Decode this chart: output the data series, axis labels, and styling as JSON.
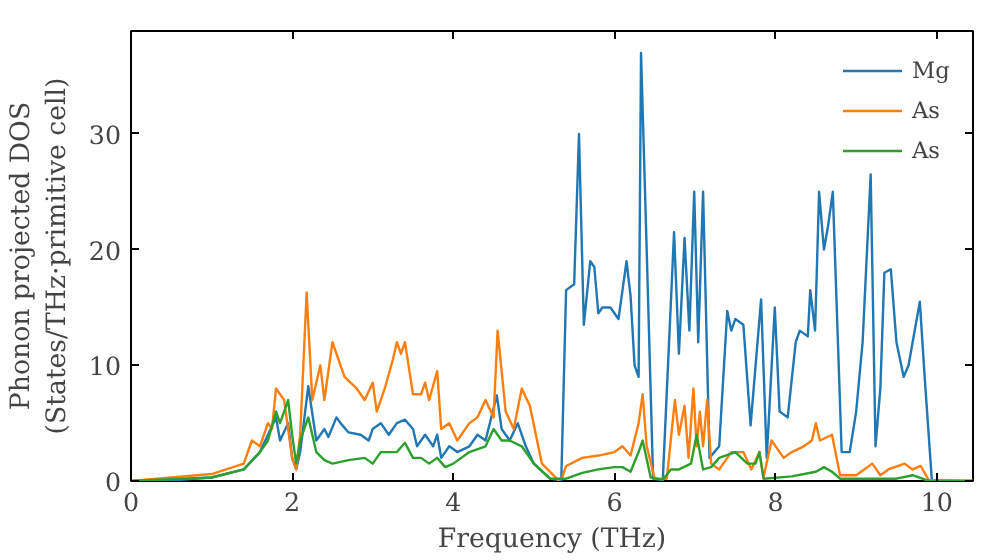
{
  "chart_data": {
    "type": "line",
    "xlabel": "Frequency (THz)",
    "ylabel": "Phonon projected DOS\n(States/THz·primitive cell)",
    "xlim": [
      0,
      10.45
    ],
    "ylim": [
      0,
      38.9
    ],
    "xticks": [
      0,
      2,
      4,
      6,
      8,
      10
    ],
    "yticks": [
      0,
      10,
      20,
      30
    ],
    "grid": false,
    "legend": "top right",
    "series": [
      {
        "name": "Mg",
        "color": "#1f77b4",
        "x": [
          0,
          0.5,
          1.0,
          1.4,
          1.6,
          1.7,
          1.8,
          1.85,
          1.95,
          2.0,
          2.05,
          2.1,
          2.2,
          2.3,
          2.4,
          2.45,
          2.55,
          2.6,
          2.7,
          2.85,
          2.95,
          3.0,
          3.1,
          3.2,
          3.3,
          3.4,
          3.5,
          3.55,
          3.65,
          3.75,
          3.8,
          3.85,
          3.95,
          4.05,
          4.2,
          4.3,
          4.4,
          4.54,
          4.6,
          4.7,
          4.8,
          4.9,
          5.0,
          5.2,
          5.3,
          5.34,
          5.4,
          5.5,
          5.56,
          5.62,
          5.7,
          5.75,
          5.8,
          5.85,
          5.95,
          6.05,
          6.15,
          6.2,
          6.25,
          6.3,
          6.33,
          6.4,
          6.48,
          6.6,
          6.74,
          6.8,
          6.87,
          6.93,
          6.99,
          7.04,
          7.1,
          7.18,
          7.3,
          7.4,
          7.45,
          7.5,
          7.6,
          7.69,
          7.82,
          7.89,
          7.99,
          8.05,
          8.15,
          8.25,
          8.3,
          8.4,
          8.43,
          8.49,
          8.54,
          8.6,
          8.65,
          8.71,
          8.82,
          8.92,
          9.0,
          9.08,
          9.18,
          9.24,
          9.3,
          9.35,
          9.43,
          9.5,
          9.59,
          9.65,
          9.79,
          9.85,
          9.94,
          10.45
        ],
        "values": [
          0,
          0.05,
          0.3,
          1.0,
          2.5,
          4,
          5.5,
          3.5,
          5,
          2,
          1,
          2.5,
          8.2,
          3.5,
          4.5,
          3.8,
          5.5,
          5,
          4.2,
          4,
          3.5,
          4.5,
          5,
          4,
          5,
          5.3,
          4.5,
          3,
          4,
          3,
          4,
          2,
          3,
          2.5,
          3,
          4,
          3.5,
          7.4,
          4.5,
          3.5,
          5,
          3,
          1.5,
          0.2,
          0.1,
          0,
          16.5,
          17,
          30,
          13.5,
          19,
          18.5,
          14.5,
          15,
          15,
          14,
          19,
          16,
          10,
          9,
          37,
          20,
          0.2,
          0.1,
          21.5,
          11,
          21,
          13,
          25,
          12,
          25,
          2,
          3,
          14.7,
          13,
          14,
          13.5,
          4.8,
          15.7,
          2,
          15,
          6,
          5.5,
          12,
          13,
          12.5,
          16.5,
          13,
          25,
          20,
          22,
          25,
          2.5,
          2.5,
          6,
          12,
          26.5,
          3,
          8,
          18,
          18.3,
          12,
          9,
          10,
          15.5,
          9,
          0,
          0
        ]
      },
      {
        "name": "As",
        "color": "#ff7f0e",
        "x": [
          0,
          1.0,
          1.4,
          1.5,
          1.6,
          1.7,
          1.75,
          1.8,
          1.9,
          2.0,
          2.05,
          2.1,
          2.18,
          2.25,
          2.35,
          2.4,
          2.5,
          2.55,
          2.65,
          2.8,
          2.9,
          3.0,
          3.05,
          3.15,
          3.25,
          3.3,
          3.35,
          3.4,
          3.5,
          3.6,
          3.65,
          3.7,
          3.8,
          3.85,
          3.95,
          4.05,
          4.2,
          4.3,
          4.4,
          4.5,
          4.55,
          4.65,
          4.75,
          4.85,
          4.95,
          5.1,
          5.3,
          5.35,
          5.4,
          5.6,
          5.8,
          6.0,
          6.1,
          6.2,
          6.3,
          6.35,
          6.4,
          6.5,
          6.65,
          6.75,
          6.8,
          6.87,
          6.92,
          6.98,
          7.02,
          7.06,
          7.1,
          7.15,
          7.2,
          7.3,
          7.45,
          7.6,
          7.7,
          7.8,
          7.85,
          7.95,
          8.1,
          8.2,
          8.35,
          8.45,
          8.5,
          8.55,
          8.7,
          8.8,
          9.0,
          9.2,
          9.3,
          9.4,
          9.6,
          9.7,
          9.8,
          9.9,
          10.45
        ],
        "values": [
          0,
          0.6,
          1.5,
          3.5,
          3,
          5,
          4.5,
          8,
          7,
          2,
          1,
          4,
          16.3,
          7,
          10,
          7,
          12,
          11,
          9,
          8,
          7,
          8.5,
          6,
          8,
          10.5,
          12,
          11,
          12,
          7.5,
          7.5,
          8.5,
          7,
          9.5,
          4.5,
          5,
          3.5,
          5,
          5.5,
          7,
          5.5,
          13,
          6,
          4.5,
          8,
          6.5,
          1.5,
          0.1,
          0.3,
          1.3,
          2,
          2.2,
          2.5,
          3,
          2.2,
          5,
          7.5,
          3,
          0.2,
          0.2,
          7,
          4,
          6.5,
          2,
          8,
          3,
          6,
          3,
          7,
          1.5,
          1,
          2.5,
          2.5,
          1,
          2.5,
          0.3,
          3.5,
          2,
          2.5,
          3,
          3.5,
          5,
          3.5,
          4,
          0.5,
          0.5,
          1.5,
          0.5,
          1,
          1.5,
          1,
          1.3,
          0.1,
          0
        ]
      },
      {
        "name": "As",
        "color": "#2ca02c",
        "x": [
          0,
          1.0,
          1.4,
          1.6,
          1.7,
          1.8,
          1.85,
          1.95,
          2.0,
          2.05,
          2.1,
          2.2,
          2.3,
          2.4,
          2.5,
          2.7,
          2.9,
          3.0,
          3.1,
          3.3,
          3.4,
          3.5,
          3.6,
          3.7,
          3.8,
          3.9,
          4.0,
          4.2,
          4.4,
          4.5,
          4.6,
          4.7,
          4.85,
          5.0,
          5.2,
          5.4,
          5.6,
          5.8,
          6.0,
          6.1,
          6.2,
          6.3,
          6.35,
          6.45,
          6.6,
          6.7,
          6.8,
          6.95,
          7.02,
          7.1,
          7.2,
          7.3,
          7.5,
          7.65,
          7.75,
          7.8,
          7.85,
          8.2,
          8.5,
          8.6,
          8.7,
          8.8,
          9.5,
          9.7,
          9.9,
          10.45
        ],
        "values": [
          0,
          0.3,
          1.0,
          2.5,
          3.5,
          6,
          5,
          7,
          4,
          1.5,
          3.5,
          5.5,
          2.5,
          1.8,
          1.5,
          1.8,
          2,
          1.5,
          2.5,
          2.5,
          3.3,
          2,
          2,
          1.5,
          2,
          1.2,
          1.5,
          2.5,
          3,
          4.5,
          3.5,
          3.5,
          3,
          1.5,
          0.2,
          0.2,
          0.7,
          1,
          1.2,
          1.2,
          0.8,
          2.5,
          3.5,
          0.3,
          0.1,
          1,
          1,
          1.5,
          4,
          1,
          1.2,
          2,
          2.5,
          1.5,
          1.5,
          2.5,
          0.2,
          0.4,
          0.8,
          1.2,
          0.8,
          0.2,
          0.2,
          0.5,
          0,
          0
        ]
      }
    ]
  }
}
